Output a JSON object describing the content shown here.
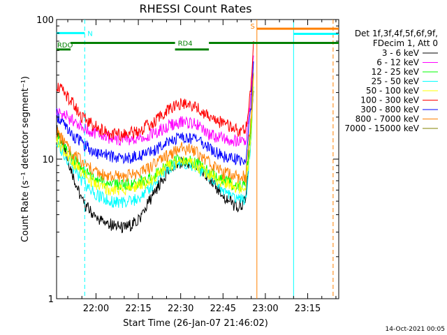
{
  "chart_data": {
    "type": "line",
    "title": "RHESSI Count Rates",
    "xlabel": "Start Time (26-Jan-07 21:46:02)",
    "ylabel": "Count Rate (s⁻¹ detector segment⁻¹)",
    "y_scale": "log",
    "ylim": [
      1,
      100
    ],
    "xlim": [
      "21:46:02",
      "23:26:00"
    ],
    "x_ticks": [
      "22:00",
      "22:15",
      "22:30",
      "22:45",
      "23:00",
      "23:15"
    ],
    "y_ticks": [
      "1",
      "10",
      "100"
    ],
    "legend_position": "right",
    "legend_header": [
      "Det 1f,3f,4f,5f,6f,9f,",
      "FDecim 1, Att 0"
    ],
    "data_gap": [
      "22:56:00",
      "23:26:00"
    ],
    "series": [
      {
        "name": "3 - 6 keV",
        "color": "#000000",
        "x": [
          "21:46",
          "21:50",
          "21:55",
          "22:00",
          "22:05",
          "22:10",
          "22:15",
          "22:20",
          "22:25",
          "22:30",
          "22:35",
          "22:40",
          "22:45",
          "22:50",
          "22:53",
          "22:55",
          "22:56"
        ],
        "values": [
          16.5,
          10,
          5,
          3.8,
          3.4,
          3.2,
          3.6,
          5.5,
          8,
          9.5,
          9,
          7.5,
          5.5,
          4.5,
          5,
          15,
          40
        ]
      },
      {
        "name": "6 - 12 keV",
        "color": "#ff00ff",
        "x": [
          "21:46",
          "21:50",
          "21:55",
          "22:00",
          "22:05",
          "22:10",
          "22:15",
          "22:20",
          "22:25",
          "22:30",
          "22:35",
          "22:40",
          "22:45",
          "22:50",
          "22:53",
          "22:55",
          "22:56"
        ],
        "values": [
          22,
          20,
          17,
          15,
          14,
          13.5,
          14,
          15,
          17,
          18.5,
          18,
          15,
          14,
          13.5,
          13,
          30,
          65
        ]
      },
      {
        "name": "12 - 25 keV",
        "color": "#00ff00",
        "x": [
          "21:46",
          "21:50",
          "21:55",
          "22:00",
          "22:05",
          "22:10",
          "22:15",
          "22:20",
          "22:25",
          "22:30",
          "22:35",
          "22:40",
          "22:45",
          "22:50",
          "22:53",
          "22:55",
          "22:56"
        ],
        "values": [
          15,
          11,
          8.5,
          7,
          6.5,
          6.5,
          6.8,
          7.5,
          9,
          10,
          9.5,
          8,
          7,
          6.5,
          6.5,
          18,
          50
        ]
      },
      {
        "name": "25 - 50 keV",
        "color": "#00ffff",
        "x": [
          "21:46",
          "21:50",
          "21:55",
          "22:00",
          "22:05",
          "22:10",
          "22:15",
          "22:20",
          "22:25",
          "22:30",
          "22:35",
          "22:40",
          "22:45",
          "22:50",
          "22:53",
          "22:55",
          "22:56"
        ],
        "values": [
          13,
          10,
          7,
          5.5,
          5,
          4.8,
          5.2,
          6.5,
          8.5,
          9.5,
          9,
          7.5,
          6,
          5.2,
          5,
          14,
          45
        ]
      },
      {
        "name": "50 - 100 keV",
        "color": "#ffff00",
        "x": [
          "21:46",
          "21:50",
          "21:55",
          "22:00",
          "22:05",
          "22:10",
          "22:15",
          "22:20",
          "22:25",
          "22:30",
          "22:35",
          "22:40",
          "22:45",
          "22:50",
          "22:53",
          "22:55",
          "22:56"
        ],
        "values": [
          14,
          10.5,
          8,
          6.5,
          6,
          6,
          6.4,
          7.2,
          8.8,
          9.8,
          9.3,
          7.8,
          6.8,
          6.3,
          6.2,
          16,
          48
        ]
      },
      {
        "name": "100 - 300 keV",
        "color": "#ff0000",
        "x": [
          "21:46",
          "21:50",
          "21:55",
          "22:00",
          "22:05",
          "22:10",
          "22:15",
          "22:20",
          "22:25",
          "22:30",
          "22:35",
          "22:40",
          "22:45",
          "22:50",
          "22:53",
          "22:55",
          "22:56"
        ],
        "values": [
          34,
          28,
          20,
          17,
          15,
          15,
          16,
          18,
          22,
          25,
          24,
          20,
          18,
          16,
          16,
          35,
          75
        ]
      },
      {
        "name": "300 - 800 keV",
        "color": "#0000ff",
        "x": [
          "21:46",
          "21:50",
          "21:55",
          "22:00",
          "22:05",
          "22:10",
          "22:15",
          "22:20",
          "22:25",
          "22:30",
          "22:35",
          "22:40",
          "22:45",
          "22:50",
          "22:53",
          "22:55",
          "22:56"
        ],
        "values": [
          21,
          16,
          13,
          11,
          10.5,
          10,
          10.5,
          11.5,
          13,
          14.5,
          14,
          12,
          10.5,
          10,
          9.5,
          25,
          60
        ]
      },
      {
        "name": "800 - 7000 keV",
        "color": "#ff8000",
        "x": [
          "21:46",
          "21:50",
          "21:55",
          "22:00",
          "22:05",
          "22:10",
          "22:15",
          "22:20",
          "22:25",
          "22:30",
          "22:35",
          "22:40",
          "22:45",
          "22:50",
          "22:53",
          "22:55",
          "22:56"
        ],
        "values": [
          16,
          12,
          9.5,
          8,
          7.5,
          7.5,
          8,
          9,
          10.5,
          12,
          11.5,
          9.5,
          8,
          7.5,
          7.5,
          20,
          55
        ]
      },
      {
        "name": "7000 - 15000 keV",
        "color": "#808000",
        "x": [],
        "values": []
      }
    ],
    "annotations": [
      {
        "label": "N",
        "color": "#00ffff",
        "x_range": [
          "21:46",
          "21:56"
        ],
        "y": 80
      },
      {
        "label": "RDO",
        "color": "#008000",
        "x_range": [
          "21:46",
          "21:51"
        ],
        "y": 61
      },
      {
        "label": "RD4",
        "color": "#008000",
        "x_range": [
          "21:51",
          "22:28"
        ],
        "y": 68
      },
      {
        "label": "",
        "color": "#008000",
        "x_range": [
          "22:28",
          "22:40"
        ],
        "y": 61
      },
      {
        "label": "",
        "color": "#008000",
        "x_range": [
          "22:40",
          "23:26"
        ],
        "y": 68
      },
      {
        "label": "S",
        "color": "#ff8000",
        "x_range": [
          "22:57",
          "23:26"
        ],
        "y": 86
      },
      {
        "label": "",
        "color": "#00ffff",
        "x_range": [
          "23:10",
          "23:26"
        ],
        "y": 79
      }
    ],
    "vertical_lines": [
      {
        "x": "21:56",
        "color": "#00ffff",
        "style": "dashed"
      },
      {
        "x": "22:57",
        "color": "#ff8000",
        "style": "solid"
      },
      {
        "x": "23:10",
        "color": "#00ffff",
        "style": "solid"
      },
      {
        "x": "23:24",
        "color": "#ff8000",
        "style": "dashed"
      }
    ]
  },
  "footer": {
    "timestamp": "14-Oct-2021 00:05"
  }
}
